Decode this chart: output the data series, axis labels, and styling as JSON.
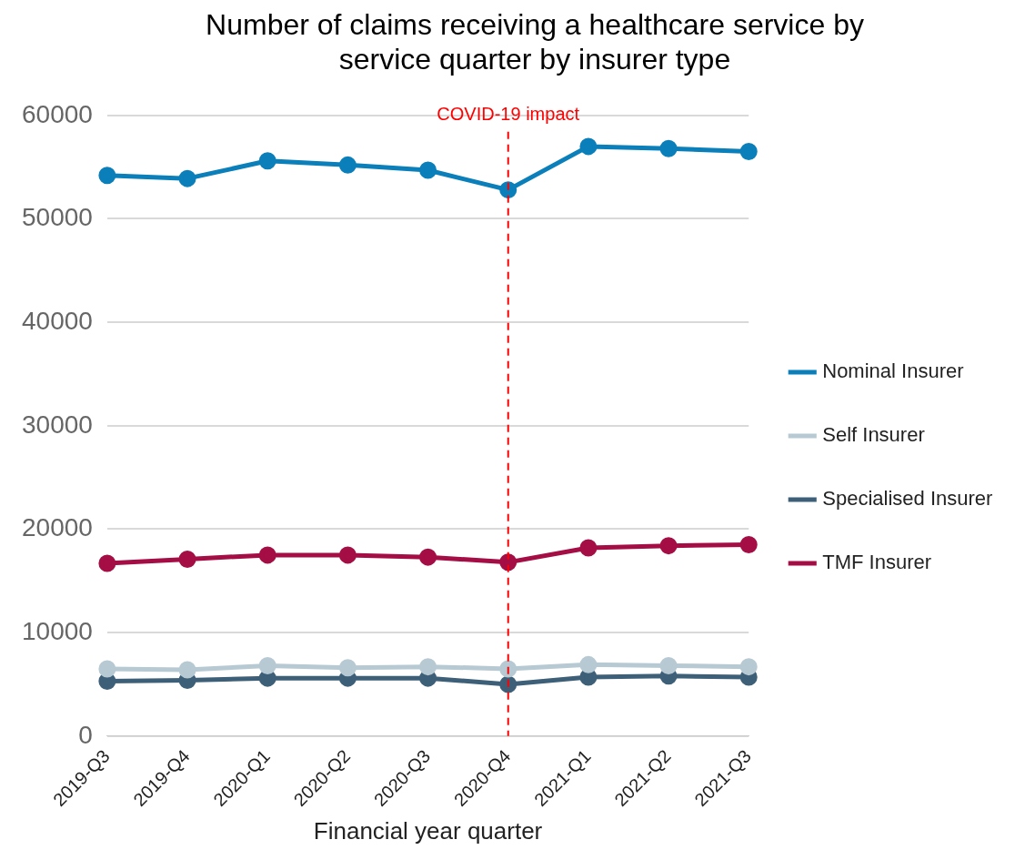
{
  "chart_data": {
    "type": "line",
    "title": "Number of claims receiving a healthcare service by service quarter by insurer type",
    "xlabel": "Financial year quarter",
    "categories": [
      "2019-Q3",
      "2019-Q4",
      "2020-Q1",
      "2020-Q2",
      "2020-Q3",
      "2020-Q4",
      "2021-Q1",
      "2021-Q2",
      "2021-Q3"
    ],
    "series": [
      {
        "name": "Nominal Insurer",
        "color": "#0a7fba",
        "values": [
          54200,
          53900,
          55600,
          55200,
          54700,
          52800,
          57000,
          56800,
          56500
        ]
      },
      {
        "name": "Self Insurer",
        "color": "#b7c9d3",
        "values": [
          6500,
          6400,
          6800,
          6600,
          6700,
          6500,
          6900,
          6800,
          6700
        ]
      },
      {
        "name": "Specialised Insurer",
        "color": "#3d5f78",
        "values": [
          5300,
          5400,
          5600,
          5600,
          5600,
          5000,
          5700,
          5800,
          5700
        ]
      },
      {
        "name": "TMF Insurer",
        "color": "#a50d45",
        "values": [
          16700,
          17100,
          17500,
          17500,
          17300,
          16800,
          18200,
          18400,
          18500
        ]
      }
    ],
    "ylim": [
      0,
      60000
    ],
    "yticks": [
      0,
      10000,
      20000,
      30000,
      40000,
      50000,
      60000
    ],
    "grid": "y",
    "legend": "right",
    "marker": "circle",
    "line_style": "solid",
    "ref_lines": [
      {
        "axis": "x",
        "value": "2020-Q4",
        "label": "COVID-19 impact",
        "color": "#ff0000",
        "line_style": "dashed"
      }
    ]
  }
}
